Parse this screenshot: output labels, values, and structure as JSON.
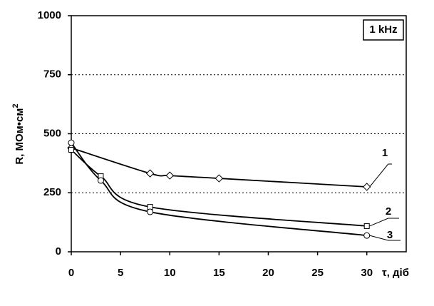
{
  "chart_data": {
    "type": "line",
    "annotation": "1 kHz",
    "y_label": "R, МОм•см",
    "y_label_sup": "2",
    "x_label": "τ, діб",
    "xlim": [
      0,
      34
    ],
    "xticks": [
      0,
      5,
      10,
      15,
      20,
      25,
      30
    ],
    "ylim": [
      0,
      1000
    ],
    "yticks": [
      0,
      250,
      500,
      750,
      1000
    ],
    "grid": true,
    "series": [
      {
        "name": "1",
        "color": "#000000",
        "marker": "diamond",
        "x": [
          0,
          8,
          10,
          15,
          30
        ],
        "values": [
          440,
          332,
          323,
          311,
          275
        ]
      },
      {
        "name": "2",
        "color": "#000000",
        "marker": "square",
        "x": [
          0,
          3,
          8,
          30
        ],
        "values": [
          432,
          320,
          190,
          109
        ]
      },
      {
        "name": "3",
        "color": "#000000",
        "marker": "circle",
        "x": [
          0,
          3,
          8,
          30
        ],
        "values": [
          462,
          302,
          169,
          69
        ]
      }
    ]
  }
}
